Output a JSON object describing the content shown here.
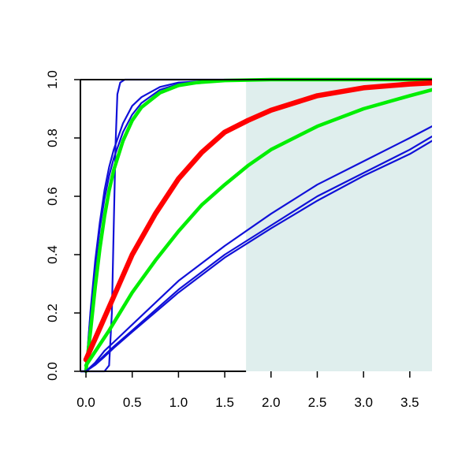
{
  "chart_data": {
    "type": "line",
    "title": "",
    "xlabel": "",
    "ylabel": "",
    "xlim": [
      -0.06,
      3.74
    ],
    "ylim": [
      0,
      1
    ],
    "grid": false,
    "x_ticks": [
      {
        "value": 0.0,
        "label": "0.0"
      },
      {
        "value": 0.5,
        "label": "0.5"
      },
      {
        "value": 1.0,
        "label": "1.0"
      },
      {
        "value": 1.5,
        "label": "1.5"
      },
      {
        "value": 2.0,
        "label": "2.0"
      },
      {
        "value": 2.5,
        "label": "2.5"
      },
      {
        "value": 3.0,
        "label": "3.0"
      },
      {
        "value": 3.5,
        "label": "3.5"
      }
    ],
    "y_ticks": [
      {
        "value": 0.0,
        "label": "0.0"
      },
      {
        "value": 0.2,
        "label": "0.2"
      },
      {
        "value": 0.4,
        "label": "0.4"
      },
      {
        "value": 0.6,
        "label": "0.6"
      },
      {
        "value": 0.8,
        "label": "0.8"
      },
      {
        "value": 1.0,
        "label": "1.0"
      }
    ],
    "shaded_region": {
      "x_from": 1.73,
      "x_to": 3.74,
      "color": "#dfeeed"
    },
    "series": [
      {
        "color": "#1010d8",
        "emphasis": "thin",
        "x": [
          -0.06,
          0.2,
          0.25,
          0.28,
          0.3,
          0.32,
          0.34,
          0.37,
          0.42,
          0.6,
          3.74
        ],
        "y": [
          0,
          0.0,
          0.02,
          0.2,
          0.5,
          0.78,
          0.95,
          0.99,
          1.0,
          1.0,
          1.0
        ]
      },
      {
        "color": "#1010d8",
        "emphasis": "thin",
        "x": [
          0,
          0.05,
          0.1,
          0.15,
          0.2,
          0.25,
          0.3,
          0.4,
          0.5,
          0.6,
          0.8,
          1.0,
          1.5,
          2.0,
          3.74
        ],
        "y": [
          0,
          0.21,
          0.38,
          0.51,
          0.62,
          0.7,
          0.76,
          0.85,
          0.91,
          0.94,
          0.975,
          0.99,
          0.999,
          1.0,
          1.0
        ]
      },
      {
        "color": "#1010d8",
        "emphasis": "thin",
        "x": [
          0,
          0.05,
          0.1,
          0.15,
          0.2,
          0.25,
          0.3,
          0.4,
          0.5,
          0.6,
          0.8,
          1.0,
          1.5,
          2.0,
          3.74
        ],
        "y": [
          0,
          0.2,
          0.36,
          0.49,
          0.59,
          0.67,
          0.73,
          0.82,
          0.88,
          0.92,
          0.965,
          0.985,
          0.998,
          1.0,
          1.0
        ]
      },
      {
        "color": "#00ee00",
        "emphasis": "thick",
        "x": [
          0,
          0.05,
          0.1,
          0.15,
          0.2,
          0.25,
          0.3,
          0.4,
          0.5,
          0.6,
          0.8,
          1.0,
          1.2,
          1.5,
          2.0,
          3.74
        ],
        "y": [
          0,
          0.14,
          0.29,
          0.42,
          0.53,
          0.62,
          0.69,
          0.79,
          0.86,
          0.905,
          0.955,
          0.98,
          0.99,
          0.997,
          1.0,
          1.0
        ]
      },
      {
        "color": "#ff0000",
        "emphasis": "thickest",
        "x": [
          0,
          0.25,
          0.5,
          0.75,
          1.0,
          1.25,
          1.5,
          1.75,
          2.0,
          2.5,
          3.0,
          3.5,
          3.74
        ],
        "y": [
          0.04,
          0.22,
          0.4,
          0.54,
          0.66,
          0.75,
          0.82,
          0.86,
          0.895,
          0.945,
          0.972,
          0.985,
          0.989
        ]
      },
      {
        "color": "#00ee00",
        "emphasis": "thick",
        "x": [
          0,
          0.25,
          0.5,
          0.75,
          1.0,
          1.25,
          1.5,
          1.75,
          2.0,
          2.5,
          3.0,
          3.5,
          3.74
        ],
        "y": [
          0.02,
          0.14,
          0.27,
          0.38,
          0.48,
          0.57,
          0.64,
          0.705,
          0.76,
          0.84,
          0.9,
          0.945,
          0.965
        ]
      },
      {
        "color": "#1010d8",
        "emphasis": "thin",
        "x": [
          -0.06,
          0,
          0.1,
          0.2,
          0.3,
          0.5,
          1.0,
          1.5,
          2.0,
          2.5,
          3.0,
          3.5,
          3.74
        ],
        "y": [
          0,
          0.0,
          0.03,
          0.07,
          0.1,
          0.16,
          0.31,
          0.43,
          0.54,
          0.64,
          0.72,
          0.8,
          0.84
        ]
      },
      {
        "color": "#1010d8",
        "emphasis": "thin",
        "x": [
          -0.06,
          0,
          0.1,
          0.2,
          0.3,
          0.5,
          1.0,
          1.5,
          2.0,
          2.5,
          3.0,
          3.5,
          3.74
        ],
        "y": [
          0,
          0.0,
          0.025,
          0.055,
          0.085,
          0.14,
          0.28,
          0.4,
          0.5,
          0.6,
          0.68,
          0.76,
          0.805
        ]
      },
      {
        "color": "#1010d8",
        "emphasis": "thin",
        "x": [
          -0.06,
          0,
          0.1,
          0.2,
          0.3,
          0.5,
          1.0,
          1.5,
          2.0,
          2.5,
          3.0,
          3.5,
          3.74
        ],
        "y": [
          0,
          0.0,
          0.022,
          0.05,
          0.08,
          0.135,
          0.27,
          0.39,
          0.49,
          0.585,
          0.67,
          0.745,
          0.79
        ]
      }
    ]
  }
}
